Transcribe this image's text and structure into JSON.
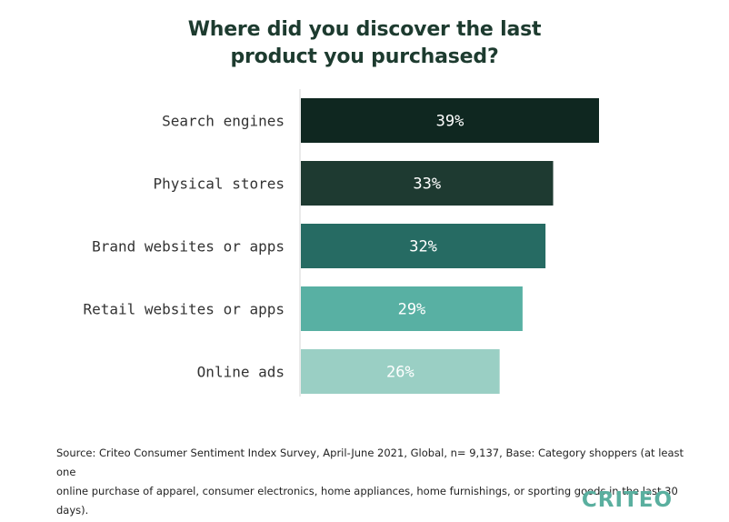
{
  "title_lines": [
    "Where did you discover the last",
    "product you purchased?"
  ],
  "chart_data": {
    "type": "bar",
    "orientation": "horizontal",
    "title": "Where did you discover the last product you purchased?",
    "categories": [
      "Search engines",
      "Physical stores",
      "Brand websites or apps",
      "Retail websites or apps",
      "Online ads"
    ],
    "values": [
      39,
      33,
      32,
      29,
      26
    ],
    "value_labels": [
      "39%",
      "33%",
      "32%",
      "29%",
      "26%"
    ],
    "bar_colors": [
      "#0f2720",
      "#1e3a31",
      "#266b63",
      "#58b0a3",
      "#9acfc4"
    ],
    "label_colors": [
      "#ffffff",
      "#ffffff",
      "#ffffff",
      "#ffffff",
      "#ffffff"
    ],
    "xlim": [
      0,
      39
    ],
    "grid": false,
    "legend": "none"
  },
  "source_text": "Source: Criteo Consumer Sentiment Index Survey, April-June 2021, Global, n= 9,137, Base: Category shoppers (at least one\nonline purchase of apparel, consumer electronics, home appliances, home furnishings, or sporting goods in the last 30 days).",
  "logo": {
    "text": "CRITEO",
    "color": "#5aaf9f"
  }
}
